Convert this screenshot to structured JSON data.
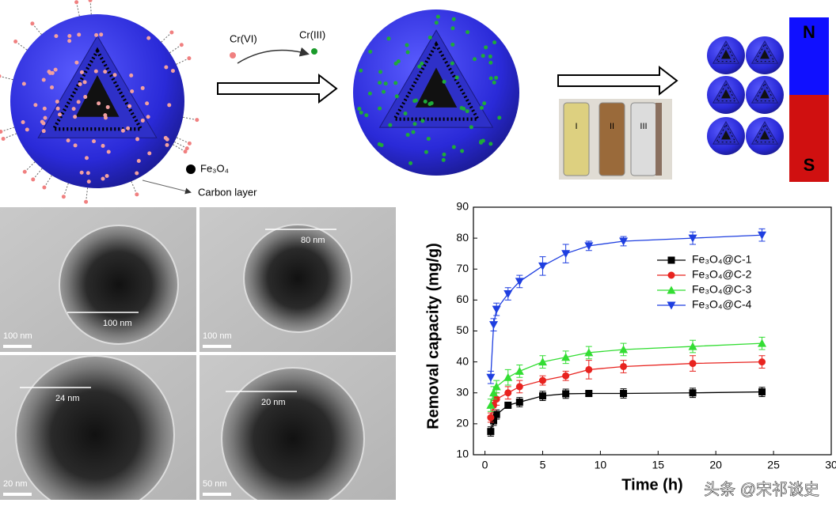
{
  "diagram": {
    "reactant": "Cr(VI)",
    "product": "Cr(III)",
    "core_label": "Fe₃O₄",
    "shell_label": "Carbon layer",
    "vials": [
      "I",
      "II",
      "III"
    ],
    "magnet": [
      "N",
      "S"
    ]
  },
  "tem": {
    "panels": [
      {
        "scale": "100 nm",
        "measure": "100 nm"
      },
      {
        "scale": "100 nm",
        "measure": "80 nm"
      },
      {
        "scale": "20 nm",
        "measure": "24 nm"
      },
      {
        "scale": "50 nm",
        "measure": "20 nm"
      }
    ]
  },
  "watermark": "头条 @宋祁谈史",
  "chart_data": {
    "type": "line",
    "x_label": "Time (h)",
    "y_label": "Removal capacity (mg/g)",
    "x": [
      0.5,
      0.75,
      1,
      2,
      3,
      5,
      7,
      9,
      12,
      18,
      24
    ],
    "series": [
      {
        "name": "Fe₃O₄@C-1",
        "color": "#000000",
        "marker": "square",
        "values": [
          17.5,
          21,
          23,
          26,
          27,
          29,
          29.7,
          29.8,
          29.8,
          30,
          30.3
        ],
        "errors": [
          1.5,
          1.5,
          1.5,
          1,
          1.5,
          1.5,
          1.5,
          1,
          1.5,
          1.5,
          1.5
        ]
      },
      {
        "name": "Fe₃O₄@C-2",
        "color": "#e8231f",
        "marker": "circle",
        "values": [
          22,
          26,
          28,
          30,
          32,
          34,
          35.5,
          37.5,
          38.5,
          39.5,
          40
        ],
        "errors": [
          1.5,
          1.5,
          2,
          2,
          2,
          1.5,
          1.5,
          3,
          2,
          2.5,
          2
        ]
      },
      {
        "name": "Fe₃O₄@C-3",
        "color": "#33dd33",
        "marker": "triangle-up",
        "values": [
          26,
          30,
          32,
          35,
          37,
          40,
          41.5,
          43,
          44,
          45,
          46
        ],
        "errors": [
          2,
          2,
          2,
          2.5,
          2,
          2,
          2,
          2,
          2,
          2,
          2
        ]
      },
      {
        "name": "Fe₃O₄@C-4",
        "color": "#1f3fe0",
        "marker": "triangle-down",
        "values": [
          35,
          52,
          57,
          62,
          66,
          71,
          75,
          77.5,
          79,
          80,
          81
        ],
        "errors": [
          2,
          2,
          2,
          2,
          2,
          3,
          3,
          1.5,
          1.5,
          2,
          2
        ]
      }
    ],
    "xlim": [
      -1,
      30
    ],
    "xticks": [
      0,
      5,
      10,
      15,
      20,
      25,
      30
    ],
    "ylim": [
      10,
      90
    ],
    "yticks": [
      10,
      20,
      30,
      40,
      50,
      60,
      70,
      80,
      90
    ],
    "legend": "upper right"
  }
}
